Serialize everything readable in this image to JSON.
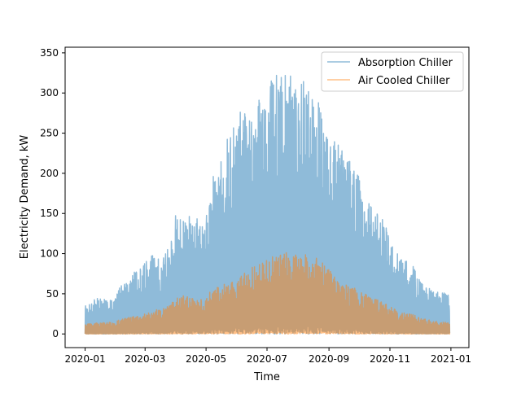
{
  "chart_data": {
    "type": "line",
    "title": "",
    "xlabel": "Time",
    "ylabel": "Electricity Demand, kW",
    "x_range": [
      "2019-12-12",
      "2021-01-19"
    ],
    "ylim": [
      -17,
      357
    ],
    "x_ticks": [
      "2020-01",
      "2020-03",
      "2020-05",
      "2020-07",
      "2020-09",
      "2020-11",
      "2021-01"
    ],
    "y_ticks": [
      0,
      50,
      100,
      150,
      200,
      250,
      300,
      350
    ],
    "legend_position": "top-right",
    "series": [
      {
        "name": "Absorption Chiller",
        "color": "#1f77b4",
        "opacity": 0.5,
        "peaks": [
          [
            "2020-01-01",
            40
          ],
          [
            "2020-01-08",
            42
          ],
          [
            "2020-01-15",
            45
          ],
          [
            "2020-01-22",
            44
          ],
          [
            "2020-01-29",
            41
          ],
          [
            "2020-02-05",
            60
          ],
          [
            "2020-02-12",
            65
          ],
          [
            "2020-02-19",
            78
          ],
          [
            "2020-02-26",
            85
          ],
          [
            "2020-03-04",
            100
          ],
          [
            "2020-03-11",
            98
          ],
          [
            "2020-03-18",
            92
          ],
          [
            "2020-03-25",
            110
          ],
          [
            "2020-04-01",
            155
          ],
          [
            "2020-04-08",
            140
          ],
          [
            "2020-04-15",
            150
          ],
          [
            "2020-04-22",
            145
          ],
          [
            "2020-04-29",
            130
          ],
          [
            "2020-05-06",
            190
          ],
          [
            "2020-05-13",
            210
          ],
          [
            "2020-05-20",
            240
          ],
          [
            "2020-05-27",
            255
          ],
          [
            "2020-06-03",
            280
          ],
          [
            "2020-06-10",
            275
          ],
          [
            "2020-06-17",
            270
          ],
          [
            "2020-06-24",
            300
          ],
          [
            "2020-07-01",
            310
          ],
          [
            "2020-07-08",
            320
          ],
          [
            "2020-07-15",
            337
          ],
          [
            "2020-07-22",
            325
          ],
          [
            "2020-07-29",
            315
          ],
          [
            "2020-08-05",
            320
          ],
          [
            "2020-08-12",
            310
          ],
          [
            "2020-08-19",
            300
          ],
          [
            "2020-08-26",
            275
          ],
          [
            "2020-09-02",
            260
          ],
          [
            "2020-09-09",
            240
          ],
          [
            "2020-09-16",
            225
          ],
          [
            "2020-09-23",
            215
          ],
          [
            "2020-09-30",
            200
          ],
          [
            "2020-10-07",
            175
          ],
          [
            "2020-10-14",
            160
          ],
          [
            "2020-10-21",
            150
          ],
          [
            "2020-10-28",
            135
          ],
          [
            "2020-11-04",
            110
          ],
          [
            "2020-11-11",
            100
          ],
          [
            "2020-11-18",
            90
          ],
          [
            "2020-11-25",
            85
          ],
          [
            "2020-12-02",
            65
          ],
          [
            "2020-12-09",
            60
          ],
          [
            "2020-12-16",
            50
          ],
          [
            "2020-12-23",
            55
          ],
          [
            "2020-12-31",
            48
          ]
        ]
      },
      {
        "name": "Air Cooled Chiller",
        "color": "#ff7f0e",
        "opacity": 0.5,
        "peaks": [
          [
            "2020-01-01",
            12
          ],
          [
            "2020-01-08",
            13
          ],
          [
            "2020-01-15",
            14
          ],
          [
            "2020-01-22",
            15
          ],
          [
            "2020-01-29",
            14
          ],
          [
            "2020-02-05",
            18
          ],
          [
            "2020-02-12",
            20
          ],
          [
            "2020-02-19",
            22
          ],
          [
            "2020-02-26",
            24
          ],
          [
            "2020-03-04",
            28
          ],
          [
            "2020-03-11",
            30
          ],
          [
            "2020-03-18",
            31
          ],
          [
            "2020-03-25",
            35
          ],
          [
            "2020-04-01",
            45
          ],
          [
            "2020-04-08",
            48
          ],
          [
            "2020-04-15",
            47
          ],
          [
            "2020-04-22",
            42
          ],
          [
            "2020-04-29",
            45
          ],
          [
            "2020-05-06",
            55
          ],
          [
            "2020-05-13",
            60
          ],
          [
            "2020-05-20",
            62
          ],
          [
            "2020-05-27",
            65
          ],
          [
            "2020-06-03",
            70
          ],
          [
            "2020-06-10",
            80
          ],
          [
            "2020-06-17",
            85
          ],
          [
            "2020-06-24",
            88
          ],
          [
            "2020-07-01",
            92
          ],
          [
            "2020-07-08",
            98
          ],
          [
            "2020-07-15",
            105
          ],
          [
            "2020-07-22",
            100
          ],
          [
            "2020-07-29",
            98
          ],
          [
            "2020-08-05",
            102
          ],
          [
            "2020-08-12",
            100
          ],
          [
            "2020-08-19",
            95
          ],
          [
            "2020-08-26",
            90
          ],
          [
            "2020-09-02",
            80
          ],
          [
            "2020-09-09",
            72
          ],
          [
            "2020-09-16",
            65
          ],
          [
            "2020-09-23",
            60
          ],
          [
            "2020-09-30",
            55
          ],
          [
            "2020-10-07",
            50
          ],
          [
            "2020-10-14",
            45
          ],
          [
            "2020-10-21",
            42
          ],
          [
            "2020-10-28",
            38
          ],
          [
            "2020-11-04",
            32
          ],
          [
            "2020-11-11",
            28
          ],
          [
            "2020-11-18",
            26
          ],
          [
            "2020-11-25",
            24
          ],
          [
            "2020-12-02",
            20
          ],
          [
            "2020-12-09",
            18
          ],
          [
            "2020-12-16",
            16
          ],
          [
            "2020-12-23",
            15
          ],
          [
            "2020-12-31",
            14
          ]
        ]
      }
    ]
  }
}
